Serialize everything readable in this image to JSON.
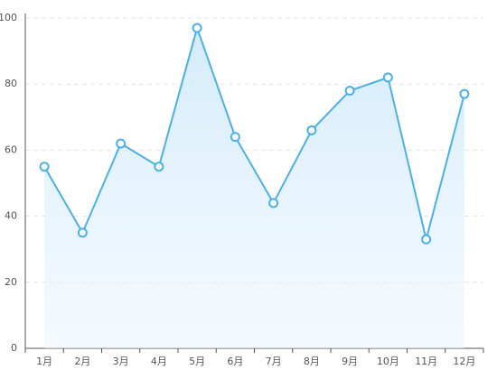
{
  "chart_data": {
    "type": "area-line",
    "categories": [
      "1月",
      "2月",
      "3月",
      "4月",
      "5月",
      "6月",
      "7月",
      "8月",
      "9月",
      "10月",
      "11月",
      "12月"
    ],
    "values": [
      55,
      35,
      62,
      55,
      97,
      64,
      44,
      66,
      78,
      82,
      33,
      77
    ],
    "color": "#4bb0e6",
    "ylim": [
      0,
      100
    ],
    "yticks": [
      0,
      20,
      40,
      60,
      80,
      100
    ],
    "grid": true
  }
}
